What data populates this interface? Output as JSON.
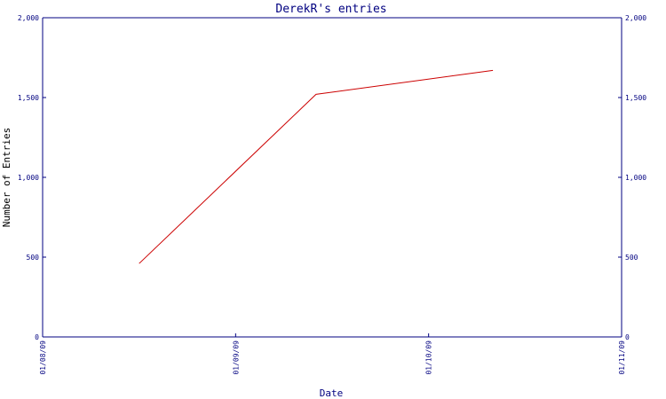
{
  "chart_data": {
    "type": "line",
    "title": "DerekR's entries",
    "xlabel": "Date",
    "ylabel": "Number of Entries",
    "x_ticks": [
      "01/08/09",
      "01/09/09",
      "01/10/09",
      "01/11/09"
    ],
    "y_ticks": [
      "0",
      "500",
      "1,000",
      "1,500",
      "2,000"
    ],
    "ylim": [
      0,
      2000
    ],
    "xlim": [
      "01/08/09",
      "01/11/09"
    ],
    "series": [
      {
        "x": [
          "01/08/09 12:00",
          "01/09/09 10:00",
          "01/10/09 08:00"
        ],
        "values": [
          460,
          1520,
          1670
        ]
      }
    ],
    "right_axis_mirrors_left": true,
    "grid": false
  },
  "colors": {
    "axis": "#000080",
    "line": "#cc0000",
    "text": "#000080",
    "axis_label": "#000000",
    "background": "#ffffff"
  }
}
